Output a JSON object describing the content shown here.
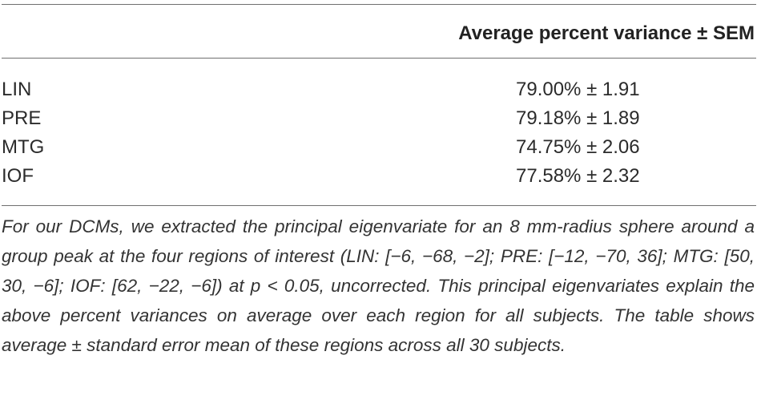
{
  "table": {
    "column_header": "Average percent variance ± SEM",
    "rows": [
      {
        "region": "LIN",
        "value": "79.00% ± 1.91"
      },
      {
        "region": "PRE",
        "value": "79.18% ± 1.89"
      },
      {
        "region": "MTG",
        "value": "74.75% ± 2.06"
      },
      {
        "region": "IOF",
        "value": "77.58% ± 2.32"
      }
    ]
  },
  "footnote": "For our DCMs, we extracted the principal eigenvariate for an 8 mm-radius sphere around a group peak at the four regions of interest (LIN: [−6, −68, −2]; PRE: [−12, −70, 36]; MTG: [50, 30, −6]; IOF: [62, −22, −6]) at p < 0.05, uncorrected. This principal eigenvariates explain the above percent variances on average over each region for all subjects. The table shows average ± standard error mean of these regions across all 30 subjects."
}
